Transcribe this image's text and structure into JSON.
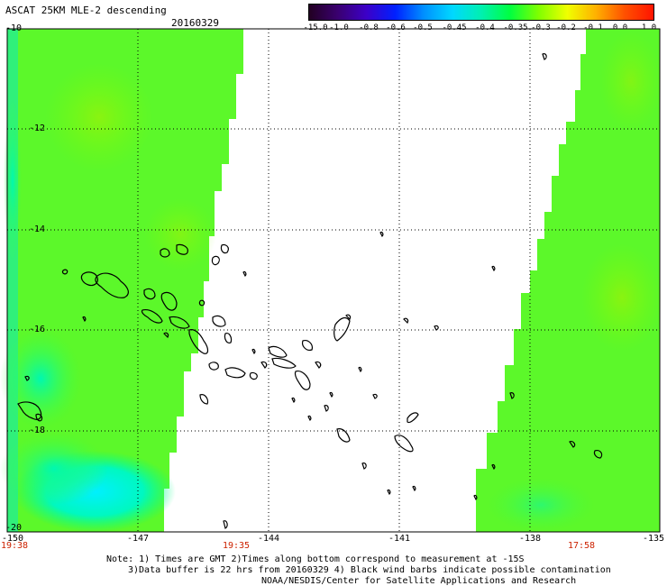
{
  "header": {
    "title": "ASCAT 25KM MLE-2 descending",
    "date": "20160329"
  },
  "colorbar": {
    "labels": [
      "-15.0",
      "-1.0",
      "-0.8",
      "-0.6",
      "-0.5",
      "-0.45",
      "-0.4",
      "-0.35",
      "-0.3",
      "-0.2",
      "-0.1",
      "0.0",
      "1.0"
    ],
    "colors": [
      "#220022",
      "#3a0070",
      "#3c00c8",
      "#0020ff",
      "#0090ff",
      "#00d8ff",
      "#00f0b0",
      "#00ff40",
      "#80ff00",
      "#f0ff00",
      "#ffb000",
      "#ff5000",
      "#ff1400"
    ]
  },
  "map": {
    "lat_labels": [
      "-10",
      "-12",
      "-14",
      "-16",
      "-18",
      "-20"
    ],
    "lon_labels": [
      "-150",
      "-147",
      "-144",
      "-141",
      "-138",
      "-135"
    ],
    "pass_times": [
      "19:38",
      "19:35",
      "17:58"
    ],
    "land_color": "#000000",
    "field_color": "#66ff22"
  },
  "notes": {
    "line1": "Note: 1) Times are GMT 2)Times along bottom correspond to measurement at -15S",
    "line2": "3)Data buffer is 22 hrs from 20160329 4) Black wind barbs indicate possible contamination",
    "line3": "NOAA/NESDIS/Center for Satellite Applications and Research"
  }
}
